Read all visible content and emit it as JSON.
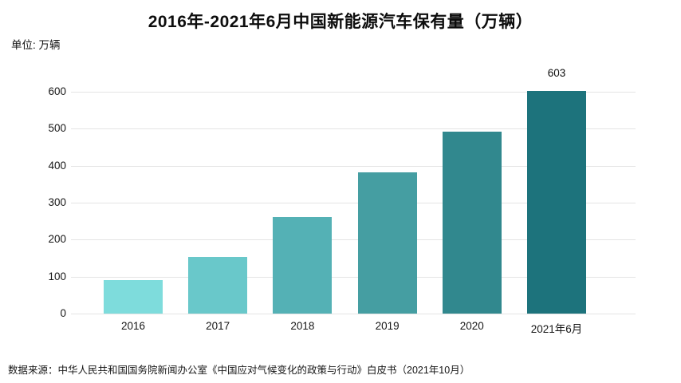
{
  "title": "2016年-2021年6月中国新能源汽车保有量（万辆）",
  "unit_label": "单位: 万辆",
  "source_note": "数据来源：中华人民共和国国务院新闻办公室《中国应对气候变化的政策与行动》白皮书（2021年10月）",
  "chart_data": {
    "type": "bar",
    "title": "2016年-2021年6月中国新能源汽车保有量（万辆）",
    "unit": "万辆",
    "categories": [
      "2016",
      "2017",
      "2018",
      "2019",
      "2020",
      "2021年6月"
    ],
    "values": [
      91,
      153,
      261,
      381,
      492,
      603
    ],
    "data_labels": [
      "",
      "",
      "",
      "",
      "",
      "603"
    ],
    "bar_colors": [
      "#7EDCDC",
      "#69C8CA",
      "#54B1B5",
      "#459EA2",
      "#31888E",
      "#1D737C"
    ],
    "yticks": [
      0,
      100,
      200,
      300,
      400,
      500,
      600
    ],
    "ylim": [
      0,
      600
    ],
    "xlabel": "",
    "ylabel": "",
    "legend": "none",
    "grid": "horizontal",
    "gridline_color": "#e4e4e4",
    "background": "#ffffff"
  }
}
